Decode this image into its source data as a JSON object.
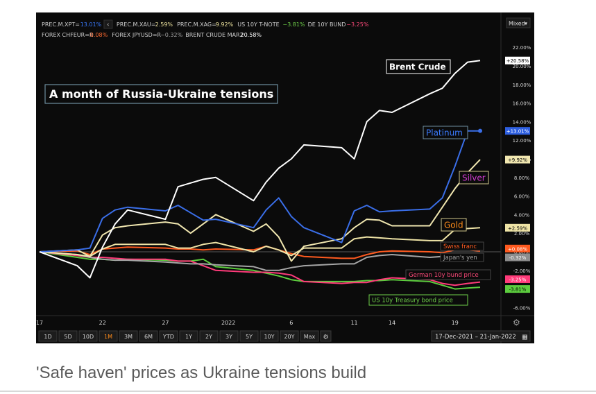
{
  "header": {
    "row1": [
      {
        "name": "PREC.M.XPT=",
        "value": "13.01%",
        "color": "#3a7bff"
      },
      {
        "name": "PREC.M.XAU=",
        "value": "2.59%",
        "color": "#f0e6a0"
      },
      {
        "name": "PREC.M.XAG=",
        "value": "9.92%",
        "color": "#f0e6a0"
      },
      {
        "name": "US 10Y T-NOTE",
        "value": "−3.81%",
        "color": "#6fd04a"
      },
      {
        "name": "DE 10Y BUND",
        "value": "−3.25%",
        "color": "#ff4a7a"
      }
    ],
    "row2": [
      {
        "name": "FOREX CHFEUR=R",
        "value": "0.08%",
        "color": "#ff6a30"
      },
      {
        "name": "FOREX JPYUSD=R",
        "value": "−0.32%",
        "color": "#a0a0a0"
      },
      {
        "name": "BRENT CRUDE MAR2",
        "value": "20.58%",
        "color": "#ffffff"
      }
    ],
    "mode_label": "Mixed",
    "nav_label": "‹"
  },
  "chart_title": "A month of Russia-Ukraine tensions",
  "timeframes": [
    "1D",
    "5D",
    "10D",
    "1M",
    "3M",
    "6M",
    "YTD",
    "1Y",
    "2Y",
    "3Y",
    "5Y",
    "10Y",
    "20Y",
    "Max"
  ],
  "active_timeframe": "1M",
  "date_range": "17-Dec-2021  –  21-Jan-2022",
  "caption": "'Safe haven' prices as Ukraine tensions build",
  "chart_data": {
    "type": "line",
    "x": [
      "2021-12-17",
      "2021-12-20",
      "2021-12-21",
      "2021-12-22",
      "2021-12-23",
      "2021-12-24",
      "2021-12-27",
      "2021-12-28",
      "2021-12-29",
      "2021-12-30",
      "2021-12-31",
      "2022-01-03",
      "2022-01-04",
      "2022-01-05",
      "2022-01-06",
      "2022-01-07",
      "2022-01-10",
      "2022-01-11",
      "2022-01-12",
      "2022-01-13",
      "2022-01-14",
      "2022-01-17",
      "2022-01-18",
      "2022-01-19",
      "2022-01-20",
      "2022-01-21"
    ],
    "x_tick_labels": [
      "17",
      "22",
      "27",
      "2022",
      "6",
      "11",
      "14",
      "19"
    ],
    "y_tick_labels": [
      "22.00%",
      "20.00%",
      "18.00%",
      "16.00%",
      "14.00%",
      "12.00%",
      "10.00%",
      "8.00%",
      "6.00%",
      "4.00%",
      "2.00%",
      "0.00%",
      "-2.00%",
      "-4.00%",
      "-6.00%"
    ],
    "ylim": [
      -7,
      23
    ],
    "y_unit": "%",
    "grid": false,
    "series": [
      {
        "name": "Brent Crude",
        "color": "#ffffff",
        "last_label": "+20.58%",
        "values": [
          0.0,
          -1.5,
          -2.8,
          0.5,
          3.0,
          4.5,
          3.5,
          7.0,
          7.4,
          7.8,
          8.0,
          5.5,
          7.5,
          9.0,
          10.0,
          11.5,
          11.2,
          10.0,
          14.0,
          15.2,
          15.0,
          17.0,
          17.6,
          19.2,
          20.4,
          20.58
        ]
      },
      {
        "name": "Platinum",
        "color": "#3a6ee8",
        "last_label": "+13.01%",
        "values": [
          0.0,
          0.2,
          0.4,
          3.6,
          4.5,
          4.8,
          4.4,
          5.0,
          4.2,
          3.4,
          3.5,
          2.6,
          4.5,
          5.8,
          3.8,
          2.6,
          1.0,
          4.4,
          5.0,
          4.3,
          4.4,
          4.6,
          5.8,
          9.2,
          13.0,
          13.01
        ]
      },
      {
        "name": "Silver",
        "color": "#f1e7b0",
        "last_label": "+9.92%",
        "values": [
          0.0,
          -0.3,
          -0.5,
          1.8,
          2.6,
          2.8,
          3.2,
          3.0,
          2.0,
          3.0,
          4.0,
          2.2,
          3.0,
          1.6,
          -1.0,
          0.6,
          1.4,
          2.6,
          3.5,
          3.4,
          2.8,
          2.8,
          4.8,
          6.8,
          8.5,
          9.92
        ]
      },
      {
        "name": "Gold",
        "color": "#efe4a6",
        "last_label": "+2.59%",
        "values": [
          0.0,
          0.2,
          -0.5,
          0.3,
          0.8,
          0.8,
          0.8,
          0.4,
          0.4,
          0.8,
          1.0,
          0.0,
          0.6,
          0.2,
          -0.4,
          0.4,
          0.4,
          1.4,
          1.6,
          1.5,
          1.4,
          1.2,
          1.2,
          2.4,
          2.5,
          2.59
        ]
      },
      {
        "name": "Swiss franc",
        "color": "#ff5a1f",
        "last_label": "+0.08%",
        "values": [
          0.0,
          0.1,
          -0.3,
          0.3,
          0.4,
          0.5,
          0.4,
          0.3,
          0.3,
          0.2,
          0.3,
          0.2,
          0.6,
          0.2,
          -0.2,
          -0.5,
          -0.7,
          -0.7,
          -0.3,
          0.0,
          0.1,
          0.0,
          -0.1,
          0.2,
          0.2,
          0.08
        ]
      },
      {
        "name": "Japan's yen",
        "color": "#a6a6a6",
        "last_label": "-0.32%",
        "values": [
          0.0,
          -0.3,
          -0.6,
          -0.8,
          -0.9,
          -0.9,
          -1.1,
          -1.2,
          -1.3,
          -1.3,
          -1.4,
          -1.6,
          -2.0,
          -2.0,
          -1.7,
          -1.5,
          -1.3,
          -1.3,
          -0.6,
          -0.4,
          -0.3,
          -0.6,
          -0.5,
          -0.4,
          -0.3,
          -0.32
        ]
      },
      {
        "name": "German 10y bund price",
        "color": "#ff3b7a",
        "last_label": "-3.25%",
        "values": [
          0.0,
          -0.4,
          -0.6,
          -0.6,
          -0.7,
          -0.8,
          -0.8,
          -1.0,
          -1.0,
          -1.5,
          -2.0,
          -2.2,
          -2.2,
          -2.3,
          -2.5,
          -3.2,
          -3.4,
          -3.3,
          -3.3,
          -3.0,
          -2.8,
          -3.0,
          -3.4,
          -3.6,
          -3.4,
          -3.25
        ]
      },
      {
        "name": "US 10y Treasury bond price",
        "color": "#5ccd3e",
        "last_label": "-3.81%",
        "values": [
          0.0,
          -0.6,
          -0.8,
          -0.8,
          -0.9,
          -0.8,
          -0.9,
          -1.0,
          -1.0,
          -0.8,
          -1.6,
          -2.0,
          -2.3,
          -2.6,
          -3.0,
          -3.2,
          -3.2,
          -3.2,
          -3.1,
          -3.1,
          -3.0,
          -3.2,
          -3.6,
          -4.0,
          -3.9,
          -3.81
        ]
      }
    ]
  }
}
